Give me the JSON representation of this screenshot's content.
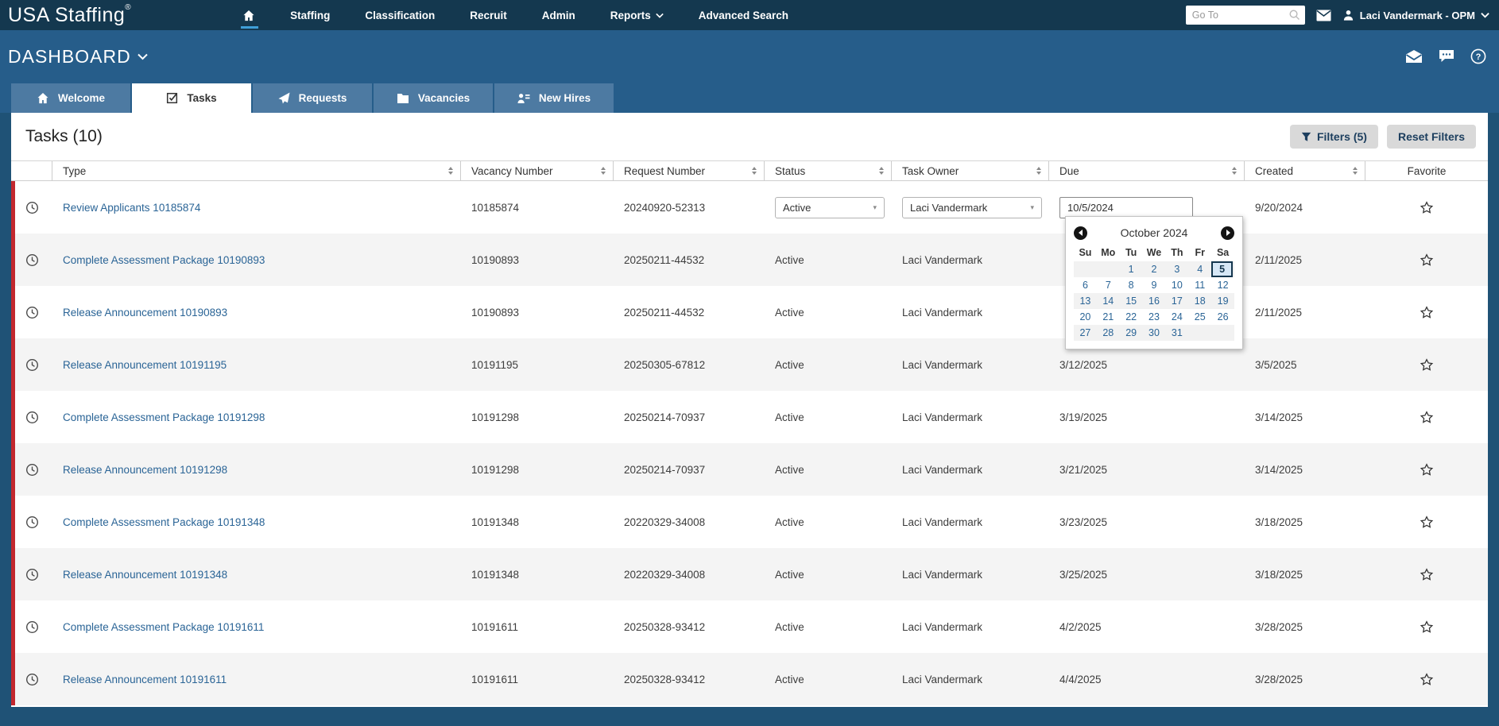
{
  "topnav": {
    "logo": "USA Staffing",
    "logo_reg": "®",
    "items": [
      {
        "label": "",
        "icon": "home",
        "active": true
      },
      {
        "label": "Staffing"
      },
      {
        "label": "Classification"
      },
      {
        "label": "Recruit"
      },
      {
        "label": "Admin"
      },
      {
        "label": "Reports",
        "caret": true
      },
      {
        "label": "Advanced Search"
      }
    ],
    "goto_placeholder": "Go To",
    "user": "Laci Vandermark - OPM"
  },
  "dashboard": {
    "title": "DASHBOARD"
  },
  "tabs": [
    {
      "label": "Welcome",
      "icon": "home"
    },
    {
      "label": "Tasks",
      "icon": "tasks",
      "active": true
    },
    {
      "label": "Requests",
      "icon": "plane"
    },
    {
      "label": "Vacancies",
      "icon": "folder"
    },
    {
      "label": "New Hires",
      "icon": "person-lines"
    }
  ],
  "page": {
    "title": "Tasks (10)",
    "filters_button": "Filters (5)",
    "reset_button": "Reset Filters"
  },
  "table": {
    "columns": [
      {
        "label": "Type",
        "sortable": true
      },
      {
        "label": "Vacancy Number",
        "sortable": true
      },
      {
        "label": "Request Number",
        "sortable": true
      },
      {
        "label": "Status",
        "sortable": true
      },
      {
        "label": "Task Owner",
        "sortable": true
      },
      {
        "label": "Due",
        "sortable": true
      },
      {
        "label": "Created",
        "sortable": true
      },
      {
        "label": "Favorite",
        "sortable": false
      }
    ],
    "rows": [
      {
        "type": "Review Applicants 10185874",
        "vacancy": "10185874",
        "request": "20240920-52313",
        "status": "Active",
        "owner": "Laci Vandermark",
        "due": "10/5/2024",
        "created": "9/20/2024",
        "editable": true,
        "favorited": false
      },
      {
        "type": "Complete Assessment Package 10190893",
        "vacancy": "10190893",
        "request": "20250211-44532",
        "status": "Active",
        "owner": "Laci Vandermark",
        "due": "",
        "created": "2/11/2025",
        "favorited": false
      },
      {
        "type": "Release Announcement 10190893",
        "vacancy": "10190893",
        "request": "20250211-44532",
        "status": "Active",
        "owner": "Laci Vandermark",
        "due": "",
        "created": "2/11/2025",
        "favorited": false
      },
      {
        "type": "Release Announcement 10191195",
        "vacancy": "10191195",
        "request": "20250305-67812",
        "status": "Active",
        "owner": "Laci Vandermark",
        "due": "3/12/2025",
        "created": "3/5/2025",
        "favorited": false
      },
      {
        "type": "Complete Assessment Package 10191298",
        "vacancy": "10191298",
        "request": "20250214-70937",
        "status": "Active",
        "owner": "Laci Vandermark",
        "due": "3/19/2025",
        "created": "3/14/2025",
        "favorited": false
      },
      {
        "type": "Release Announcement 10191298",
        "vacancy": "10191298",
        "request": "20250214-70937",
        "status": "Active",
        "owner": "Laci Vandermark",
        "due": "3/21/2025",
        "created": "3/14/2025",
        "favorited": false
      },
      {
        "type": "Complete Assessment Package 10191348",
        "vacancy": "10191348",
        "request": "20220329-34008",
        "status": "Active",
        "owner": "Laci Vandermark",
        "due": "3/23/2025",
        "created": "3/18/2025",
        "favorited": false
      },
      {
        "type": "Release Announcement 10191348",
        "vacancy": "10191348",
        "request": "20220329-34008",
        "status": "Active",
        "owner": "Laci Vandermark",
        "due": "3/25/2025",
        "created": "3/18/2025",
        "favorited": false
      },
      {
        "type": "Complete Assessment Package 10191611",
        "vacancy": "10191611",
        "request": "20250328-93412",
        "status": "Active",
        "owner": "Laci Vandermark",
        "due": "4/2/2025",
        "created": "3/28/2025",
        "favorited": false
      },
      {
        "type": "Release Announcement 10191611",
        "vacancy": "10191611",
        "request": "20250328-93412",
        "status": "Active",
        "owner": "Laci Vandermark",
        "due": "4/4/2025",
        "created": "3/28/2025",
        "favorited": false
      }
    ]
  },
  "calendar": {
    "title": "October 2024",
    "day_headers": [
      "Su",
      "Mo",
      "Tu",
      "We",
      "Th",
      "Fr",
      "Sa"
    ],
    "weeks": [
      [
        "",
        "",
        "1",
        "2",
        "3",
        "4",
        "5"
      ],
      [
        "6",
        "7",
        "8",
        "9",
        "10",
        "11",
        "12"
      ],
      [
        "13",
        "14",
        "15",
        "16",
        "17",
        "18",
        "19"
      ],
      [
        "20",
        "21",
        "22",
        "23",
        "24",
        "25",
        "26"
      ],
      [
        "27",
        "28",
        "29",
        "30",
        "31",
        "",
        ""
      ]
    ],
    "selected_day": "5"
  },
  "colors": {
    "topnav_bg": "#14384f",
    "band_bg": "#265d8a",
    "tab_bg": "#4d7aa2",
    "page_bg": "#1f5276",
    "accent_red": "#c2282e",
    "link_blue": "#2a6496",
    "button_bg": "#d9d9d9",
    "button_text": "#1c3e5e",
    "row_alt_bg": "#f4f4f4",
    "calendar_selected_bg": "#d6e7f6",
    "calendar_selected_border": "#14364e",
    "nav_active_underline": "#3f9fd8"
  }
}
